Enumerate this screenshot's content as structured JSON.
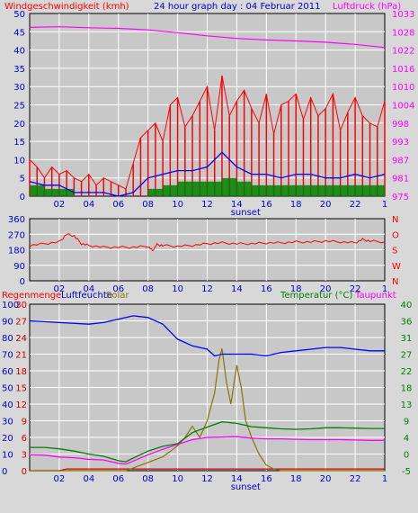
{
  "header": {
    "left_title": "Windgeschwindigkeit (kmh)",
    "center_title": "24 hour graph day : 04 Februar 2011",
    "right_title": "Luftdruck (hPa)"
  },
  "colors": {
    "bg": "#d8d8d8",
    "grid": "#ffffff",
    "wind": "#ff0000",
    "wind_avg": "#0000ff",
    "wind_min": "#008000",
    "pressure": "#ff00ff",
    "winddir": "#ff0000",
    "humidity": "#0000ff",
    "temperature": "#008000",
    "dewpoint": "#ff00ff",
    "rain": "#cc0000",
    "solar": "#8b7500",
    "axis_text_blue": "#0000cc"
  },
  "chart_data": [
    {
      "type": "line",
      "x_ticks": [
        "02",
        "04",
        "06",
        "08",
        "10",
        "12",
        "14",
        "16",
        "18",
        "20",
        "22",
        "1"
      ],
      "sunset_label": "sunset",
      "sunset_hour": 14.6,
      "left_axis": {
        "ticks": [
          "0",
          "5",
          "10",
          "15",
          "20",
          "25",
          "30",
          "35",
          "40",
          "45",
          "50"
        ],
        "ylim": [
          0,
          50
        ]
      },
      "right_axis": {
        "ticks": [
          "975",
          "981",
          "987",
          "993",
          "998",
          "1004",
          "1010",
          "1016",
          "1022",
          "1028",
          "1033"
        ],
        "ylim": [
          975,
          1033
        ]
      },
      "series": [
        {
          "name": "Windgeschwindigkeit (kmh)",
          "color": "#ff0000",
          "x": [
            0,
            0.5,
            1,
            1.5,
            2,
            2.5,
            3,
            3.5,
            4,
            4.5,
            5,
            5.5,
            6,
            6.5,
            7,
            7.5,
            8,
            8.5,
            9,
            9.5,
            10,
            10.5,
            11,
            11.5,
            12,
            12.5,
            13,
            13.5,
            14,
            14.5,
            15,
            15.5,
            16,
            16.5,
            17,
            17.5,
            18,
            18.5,
            19,
            19.5,
            20,
            20.5,
            21,
            21.5,
            22,
            22.5,
            23,
            23.5,
            24
          ],
          "values": [
            10,
            8,
            5,
            8,
            6,
            7,
            5,
            4,
            6,
            3,
            5,
            4,
            3,
            2,
            9,
            16,
            18,
            20,
            15,
            25,
            27,
            19,
            22,
            26,
            30,
            18,
            33,
            22,
            26,
            29,
            24,
            20,
            28,
            17,
            25,
            26,
            28,
            21,
            27,
            22,
            24,
            28,
            18,
            23,
            27,
            22,
            20,
            19,
            26
          ]
        },
        {
          "name": "Durchschnitt",
          "color": "#0000ff",
          "x": [
            0,
            1,
            2,
            3,
            4,
            5,
            6,
            7,
            8,
            9,
            10,
            11,
            12,
            13,
            14,
            15,
            16,
            17,
            18,
            19,
            20,
            21,
            22,
            23,
            24
          ],
          "values": [
            4,
            3,
            3,
            1,
            1,
            1,
            0,
            1,
            5,
            6,
            7,
            7,
            8,
            12,
            8,
            6,
            6,
            5,
            6,
            6,
            5,
            5,
            6,
            5,
            6
          ]
        },
        {
          "name": "Minimum",
          "color": "#008000",
          "x": [
            0,
            1,
            2,
            3,
            4,
            5,
            6,
            7,
            8,
            9,
            10,
            11,
            12,
            13,
            14,
            15,
            16,
            17,
            18,
            19,
            20,
            21,
            22,
            23,
            24
          ],
          "values": [
            3,
            2,
            2,
            0,
            0,
            0,
            0,
            0,
            2,
            3,
            4,
            4,
            4,
            5,
            4,
            3,
            3,
            3,
            3,
            3,
            3,
            3,
            3,
            3,
            3
          ]
        },
        {
          "name": "Luftdruck (hPa)",
          "color": "#ff00ff",
          "axis": "right",
          "x": [
            0,
            2,
            4,
            6,
            8,
            10,
            12,
            14,
            16,
            18,
            20,
            22,
            24
          ],
          "values": [
            1028.6,
            1028.8,
            1028.5,
            1028.3,
            1027.8,
            1026.9,
            1025.9,
            1025.1,
            1024.6,
            1024.3,
            1023.9,
            1023.2,
            1022.2
          ]
        }
      ]
    },
    {
      "type": "line",
      "x_ticks": [
        "02",
        "04",
        "06",
        "08",
        "10",
        "12",
        "14",
        "16",
        "18",
        "20",
        "22",
        "1"
      ],
      "left_axis": {
        "ticks": [
          "0",
          "90",
          "180",
          "270",
          "360"
        ],
        "ylim": [
          0,
          360
        ]
      },
      "right_axis": {
        "ticks": [
          "N",
          "W",
          "S",
          "O",
          "N"
        ]
      },
      "series": [
        {
          "name": "Windrichtung",
          "color": "#ff0000",
          "x": [
            0,
            1,
            2,
            2.5,
            3,
            3.5,
            4,
            5,
            6,
            7,
            8,
            8.3,
            8.6,
            9,
            10,
            11,
            12,
            13,
            14,
            15,
            16,
            17,
            18,
            19,
            20,
            21,
            22,
            22.5,
            23,
            24
          ],
          "values": [
            205,
            215,
            225,
            270,
            260,
            215,
            205,
            195,
            195,
            195,
            200,
            175,
            210,
            205,
            200,
            205,
            215,
            220,
            215,
            215,
            220,
            220,
            225,
            225,
            230,
            225,
            220,
            240,
            230,
            225
          ]
        }
      ]
    },
    {
      "type": "line",
      "x_ticks": [
        "02",
        "04",
        "06",
        "08",
        "10",
        "12",
        "14",
        "16",
        "18",
        "20",
        "22",
        "1"
      ],
      "sunset_label": "sunset",
      "header_labels": [
        "Regenmenge",
        "Luftfeuchte",
        "Solar",
        "Temperatur (°C)",
        "Taupunkt"
      ],
      "left_axis_outer": {
        "ticks": [
          "0",
          "10",
          "20",
          "30",
          "40",
          "50",
          "60",
          "70",
          "80",
          "90",
          "100"
        ],
        "ylim": [
          0,
          100
        ]
      },
      "left_axis_inner": {
        "ticks": [
          "0",
          "3",
          "6",
          "9",
          "12",
          "15",
          "18",
          "21",
          "24",
          "27",
          "30"
        ],
        "ylim": [
          0,
          30
        ]
      },
      "right_axis": {
        "ticks": [
          "-5",
          "0",
          "4",
          "9",
          "13",
          "18",
          "22",
          "27",
          "31",
          "36",
          "40"
        ],
        "ylim": [
          -5,
          40
        ]
      },
      "series": [
        {
          "name": "Luftfeuchte",
          "color": "#0000ff",
          "x": [
            0,
            2,
            4,
            5,
            6,
            7,
            8,
            9,
            10,
            11,
            12,
            12.5,
            13,
            14,
            15,
            16,
            17,
            18,
            19,
            20,
            21,
            22,
            23,
            24
          ],
          "values": [
            90,
            89,
            88,
            89,
            91,
            93,
            92,
            88,
            79,
            75,
            73,
            69,
            70,
            70,
            70,
            69,
            71,
            72,
            73,
            74,
            74,
            73,
            72,
            72
          ]
        },
        {
          "name": "Temperatur (°C)",
          "color": "#008000",
          "x": [
            0,
            1,
            2,
            3,
            4,
            5,
            6,
            6.5,
            7,
            8,
            9,
            10,
            11,
            12,
            13,
            14,
            15,
            16,
            17,
            18,
            19,
            20,
            21,
            22,
            23,
            24
          ],
          "values": [
            1.3,
            1.3,
            0.9,
            0.3,
            -0.5,
            -1.1,
            -2.3,
            -2.6,
            -1.6,
            0.3,
            1.6,
            2.3,
            5.3,
            6.8,
            8.2,
            7.8,
            6.9,
            6.6,
            6.3,
            6.2,
            6.3,
            6.6,
            6.6,
            6.5,
            6.4,
            6.4
          ]
        },
        {
          "name": "Taupunkt",
          "color": "#ff00ff",
          "x": [
            0,
            1,
            2,
            3,
            4,
            5,
            6,
            6.5,
            7,
            8,
            9,
            10,
            11,
            12,
            13,
            14,
            15,
            16,
            17,
            18,
            19,
            20,
            21,
            22,
            23,
            24
          ],
          "values": [
            -0.7,
            -0.8,
            -1.3,
            -1.5,
            -1.9,
            -2.1,
            -3.0,
            -3.2,
            -2.4,
            -0.7,
            0.8,
            2.1,
            3.4,
            4.0,
            4.1,
            4.2,
            3.8,
            3.6,
            3.6,
            3.5,
            3.4,
            3.4,
            3.4,
            3.3,
            3.2,
            3.2
          ]
        },
        {
          "name": "Solar",
          "color": "#8b7500",
          "x": [
            0,
            6.5,
            7,
            8,
            9,
            10,
            10.5,
            11,
            11.5,
            12,
            12.5,
            12.8,
            13,
            13.3,
            13.6,
            14,
            14.3,
            14.6,
            15,
            15.5,
            16,
            16.5,
            17,
            24
          ],
          "values": [
            0,
            0,
            0.5,
            1.5,
            2.5,
            4.5,
            6,
            8,
            6,
            9,
            14,
            20,
            22,
            16,
            12,
            19,
            15,
            9,
            6,
            3,
            1,
            0.3,
            0,
            0
          ]
        },
        {
          "name": "Regenmenge",
          "color": "#cc0000",
          "x": [
            0,
            2,
            2.5,
            16,
            24
          ],
          "values": [
            0,
            0,
            0.3,
            0.3,
            0.3
          ]
        }
      ]
    }
  ]
}
